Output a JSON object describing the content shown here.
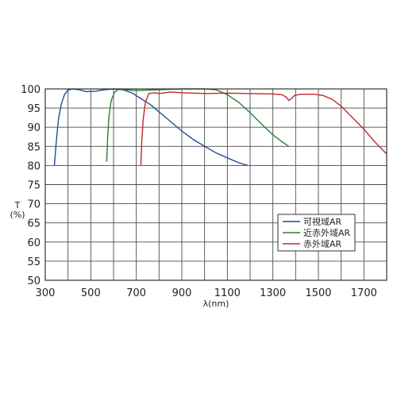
{
  "chart_data": {
    "type": "line",
    "title": "",
    "xlabel": "λ(nm)",
    "ylabel_top": "T",
    "ylabel_unit": "(%)",
    "xlim": [
      300,
      1800
    ],
    "ylim": [
      50,
      100
    ],
    "x_ticks": [
      300,
      500,
      700,
      900,
      1100,
      1300,
      1500,
      1700
    ],
    "x_minor_step": 100,
    "y_ticks": [
      50,
      55,
      60,
      65,
      70,
      75,
      80,
      85,
      90,
      95,
      100
    ],
    "grid": true,
    "legend_position": "middle-right",
    "series": [
      {
        "name": "可視域AR",
        "color": "#1f4e8c",
        "points": [
          [
            340,
            80
          ],
          [
            348,
            86
          ],
          [
            358,
            92
          ],
          [
            370,
            96
          ],
          [
            385,
            98.6
          ],
          [
            400,
            99.7
          ],
          [
            420,
            100
          ],
          [
            450,
            99.8
          ],
          [
            480,
            99.3
          ],
          [
            520,
            99.4
          ],
          [
            560,
            99.8
          ],
          [
            600,
            100
          ],
          [
            640,
            99.8
          ],
          [
            680,
            99
          ],
          [
            720,
            97.5
          ],
          [
            760,
            96
          ],
          [
            800,
            94
          ],
          [
            850,
            91.5
          ],
          [
            900,
            89
          ],
          [
            950,
            86.8
          ],
          [
            1000,
            85
          ],
          [
            1050,
            83.3
          ],
          [
            1100,
            82
          ],
          [
            1150,
            80.7
          ],
          [
            1190,
            80
          ]
        ]
      },
      {
        "name": "近赤外域AR",
        "color": "#2e7d32",
        "points": [
          [
            570,
            81
          ],
          [
            574,
            87
          ],
          [
            580,
            93
          ],
          [
            590,
            97
          ],
          [
            605,
            99.2
          ],
          [
            625,
            100
          ],
          [
            650,
            99.8
          ],
          [
            700,
            99.6
          ],
          [
            800,
            99.8
          ],
          [
            900,
            100
          ],
          [
            1000,
            100
          ],
          [
            1050,
            99.8
          ],
          [
            1100,
            98.5
          ],
          [
            1150,
            96.5
          ],
          [
            1200,
            93.8
          ],
          [
            1250,
            90.8
          ],
          [
            1300,
            88
          ],
          [
            1340,
            86.2
          ],
          [
            1370,
            85
          ]
        ]
      },
      {
        "name": "赤外域AR",
        "color": "#c62828",
        "points": [
          [
            720,
            80
          ],
          [
            724,
            86
          ],
          [
            730,
            92
          ],
          [
            740,
            96.5
          ],
          [
            755,
            98.8
          ],
          [
            780,
            99
          ],
          [
            800,
            98.8
          ],
          [
            850,
            99.2
          ],
          [
            900,
            99
          ],
          [
            1000,
            98.8
          ],
          [
            1100,
            98.9
          ],
          [
            1200,
            98.8
          ],
          [
            1300,
            98.7
          ],
          [
            1340,
            98.5
          ],
          [
            1360,
            97.8
          ],
          [
            1370,
            97
          ],
          [
            1380,
            97.4
          ],
          [
            1395,
            98.3
          ],
          [
            1420,
            98.6
          ],
          [
            1480,
            98.6
          ],
          [
            1520,
            98.3
          ],
          [
            1560,
            97.3
          ],
          [
            1600,
            95.5
          ],
          [
            1650,
            92.5
          ],
          [
            1700,
            89.5
          ],
          [
            1750,
            86
          ],
          [
            1800,
            83
          ]
        ]
      }
    ]
  }
}
